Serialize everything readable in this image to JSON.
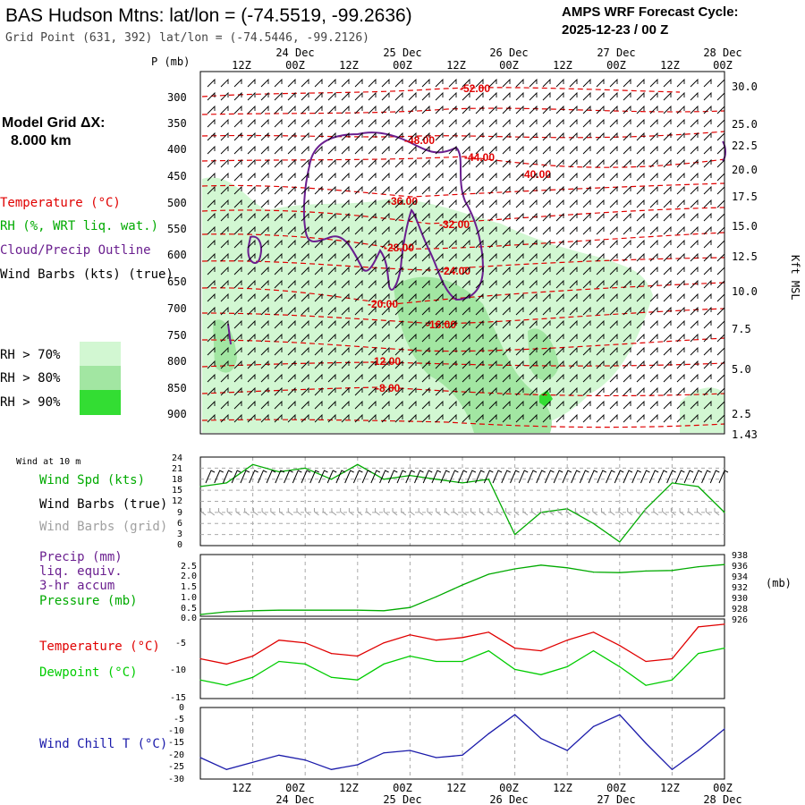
{
  "header": {
    "title": "BAS Hudson Mtns:  lat/lon = (-74.5519, -99.2636)",
    "subtitle": "Grid Point (631, 392) lat/lon = (-74.5446, -99.2126)",
    "cycle_line1": "AMPS WRF Forecast Cycle:",
    "cycle_line2": "2025-12-23 / 00  Z"
  },
  "colors": {
    "temperature": "#e00000",
    "rh": "#00aa00",
    "cloud_outline": "#6a1f8f",
    "wind_barbs_true": "#000000",
    "wind_barbs_grid": "#a0a0a0",
    "precip": "#6a1f8f",
    "pressure": "#00aa00",
    "dewpoint": "#00cc00",
    "wind_chill": "#1a1aaa",
    "rh70": "#d2f7d2",
    "rh80": "#a2e6a2",
    "rh90": "#33dd33"
  },
  "time_axis": {
    "top_hour_labels": [
      "12Z",
      "00Z",
      "12Z",
      "00Z",
      "12Z",
      "00Z",
      "12Z",
      "00Z",
      "12Z",
      "00Z"
    ],
    "top_date_labels": [
      "24 Dec",
      "25 Dec",
      "26 Dec",
      "27 Dec",
      "28 Dec"
    ],
    "bottom_hour_labels": [
      "12Z",
      "00Z",
      "12Z",
      "00Z",
      "12Z",
      "00Z",
      "12Z",
      "00Z",
      "12Z",
      "00Z"
    ],
    "bottom_date_labels": [
      "24 Dec",
      "25 Dec",
      "26 Dec",
      "27 Dec",
      "28 Dec"
    ]
  },
  "left_panel": {
    "model_grid_label": "Model Grid ΔX:",
    "model_grid_value": "8.000 km",
    "legend_temperature": "Temperature (°C)",
    "legend_rh": "RH (%, WRT liq. wat.)",
    "legend_cloud": "Cloud/Precip Outline",
    "legend_wind": "Wind Barbs (kts) (true)",
    "rh70": "RH > 70%",
    "rh80": "RH > 80%",
    "rh90": "RH > 90%"
  },
  "cross_section": {
    "p_axis_title": "P (mb)",
    "pressure_ticks": [
      "300",
      "350",
      "400",
      "450",
      "500",
      "550",
      "600",
      "650",
      "700",
      "750",
      "800",
      "850",
      "900"
    ],
    "height_ticks": [
      "30.0",
      "25.0",
      "22.5",
      "20.0",
      "17.5",
      "15.0",
      "12.5",
      "10.0",
      "7.5",
      "5.0",
      "2.5",
      "1.43"
    ],
    "height_axis_title": "Kft MSL",
    "isotherm_labels": [
      "-52.00",
      "-48.00",
      "-44.00",
      "-40.00",
      "-36.00",
      "-32.00",
      "-28.00",
      "-24.00",
      "-20.00",
      "-16.00",
      "-12.00",
      "-8.00"
    ]
  },
  "panels": {
    "wind_header": "Wind at 10 m",
    "wind_spd": "Wind Spd (kts)",
    "wind_barbs_true": "Wind Barbs (true)",
    "wind_barbs_grid": "Wind Barbs (grid)",
    "precip_line1": "Precip (mm)",
    "precip_line2": "liq. equiv.",
    "precip_line3": "3-hr accum",
    "pressure": "Pressure (mb)",
    "pressure_unit": "(mb)",
    "temperature": "Temperature (°C)",
    "dewpoint": "Dewpoint (°C)",
    "windchill": "Wind Chill T (°C)"
  },
  "chart_data": [
    {
      "type": "line",
      "panel": "wind_speed",
      "ylim": [
        0,
        24
      ],
      "y_ticks": [
        "0",
        "3",
        "6",
        "9",
        "12",
        "15",
        "18",
        "21",
        "24"
      ],
      "x_hours": [
        0,
        6,
        12,
        18,
        24,
        30,
        36,
        42,
        48,
        54,
        60,
        66,
        72,
        78,
        84,
        90,
        96,
        102,
        108,
        114,
        120
      ],
      "series": [
        {
          "name": "Wind Spd (kts)",
          "values": [
            16,
            17,
            22,
            20,
            21,
            18,
            22,
            18,
            19,
            18,
            17,
            18,
            3,
            9,
            10,
            6,
            1,
            10,
            17,
            16,
            9
          ]
        }
      ]
    },
    {
      "type": "line",
      "panel": "pressure",
      "y_ticks_left": [
        "0.0",
        "0.5",
        "1.0",
        "1.5",
        "2.0",
        "2.5"
      ],
      "y_ticks_right": [
        "938",
        "936",
        "934",
        "932",
        "930",
        "928",
        "926"
      ],
      "x_hours": [
        0,
        6,
        12,
        18,
        24,
        30,
        36,
        42,
        48,
        54,
        60,
        66,
        72,
        78,
        84,
        90,
        96,
        102,
        108,
        114,
        120
      ],
      "series": [
        {
          "name": "Pressure (mb)",
          "values": [
            927.5,
            928.0,
            928.2,
            928.3,
            928.3,
            928.3,
            928.3,
            928.2,
            928.8,
            930.8,
            933.0,
            935.0,
            936.0,
            936.7,
            936.2,
            935.4,
            935.3,
            935.6,
            935.7,
            936.4,
            936.8
          ]
        }
      ]
    },
    {
      "type": "line",
      "panel": "temperature",
      "ylim": [
        -15,
        0
      ],
      "y_ticks": [
        "-5",
        "-10",
        "-15"
      ],
      "x_hours": [
        0,
        6,
        12,
        18,
        24,
        30,
        36,
        42,
        48,
        54,
        60,
        66,
        72,
        78,
        84,
        90,
        96,
        102,
        108,
        114,
        120
      ],
      "series": [
        {
          "name": "Temperature (°C)",
          "values": [
            -7.5,
            -8.5,
            -7.0,
            -4.0,
            -4.5,
            -6.5,
            -7.0,
            -4.5,
            -3.0,
            -4.0,
            -3.5,
            -2.5,
            -5.5,
            -6.0,
            -4.0,
            -2.5,
            -5.0,
            -8.0,
            -7.5,
            -1.5,
            -1.0
          ]
        },
        {
          "name": "Dewpoint (°C)",
          "values": [
            -11.5,
            -12.5,
            -11.0,
            -8.0,
            -8.5,
            -11.0,
            -11.5,
            -8.5,
            -7.0,
            -8.0,
            -8.0,
            -6.0,
            -9.5,
            -10.5,
            -9.0,
            -6.0,
            -9.0,
            -12.5,
            -11.5,
            -6.5,
            -5.5
          ]
        }
      ]
    },
    {
      "type": "line",
      "panel": "wind_chill",
      "ylim": [
        -30,
        0
      ],
      "y_ticks": [
        "0",
        "-5",
        "-10",
        "-15",
        "-20",
        "-25",
        "-30"
      ],
      "x_hours": [
        0,
        6,
        12,
        18,
        24,
        30,
        36,
        42,
        48,
        54,
        60,
        66,
        72,
        78,
        84,
        90,
        96,
        102,
        108,
        114,
        120
      ],
      "series": [
        {
          "name": "Wind Chill T (°C)",
          "values": [
            -21,
            -26,
            -23,
            -20,
            -22,
            -26,
            -24,
            -19,
            -18,
            -21,
            -20,
            -11,
            -3,
            -13,
            -18,
            -8,
            -3,
            -15,
            -26,
            -18,
            -9
          ]
        }
      ]
    }
  ]
}
